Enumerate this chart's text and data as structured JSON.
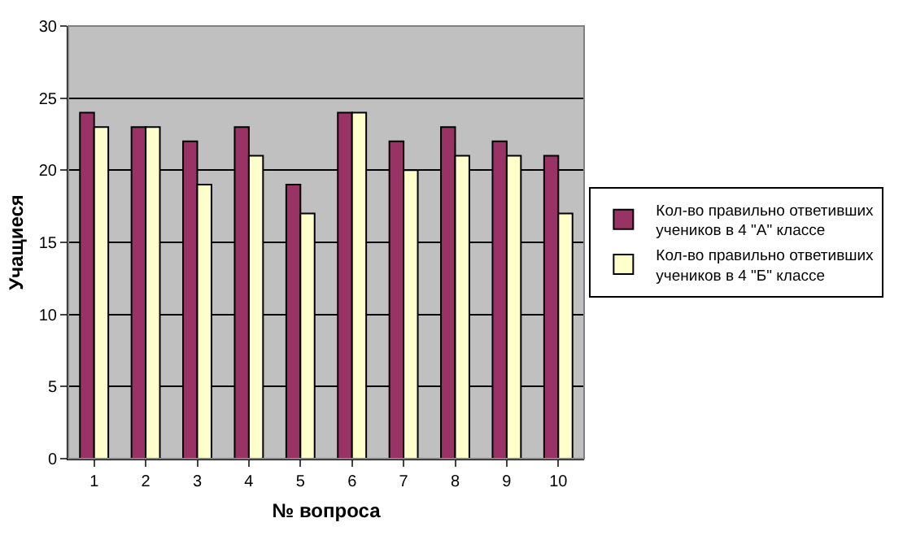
{
  "chart_data": {
    "type": "bar",
    "xlabel": "№ вопроса",
    "ylabel": "Учащиеся",
    "categories": [
      "1",
      "2",
      "3",
      "4",
      "5",
      "6",
      "7",
      "8",
      "9",
      "10"
    ],
    "series": [
      {
        "name": "Кол-во правильно ответивших учеников в 4 \"А\" классе",
        "color": "#993366",
        "values": [
          24,
          23,
          22,
          23,
          19,
          24,
          22,
          23,
          22,
          21
        ]
      },
      {
        "name": "Кол-во правильно ответивших учеников в 4 \"Б\" классе",
        "color": "#ffffcc",
        "values": [
          23,
          23,
          19,
          21,
          17,
          24,
          20,
          21,
          21,
          17
        ]
      }
    ],
    "ylim": [
      0,
      30
    ],
    "yticks": [
      0,
      5,
      10,
      15,
      20,
      25,
      30
    ],
    "grid": "y",
    "legend": "right"
  }
}
